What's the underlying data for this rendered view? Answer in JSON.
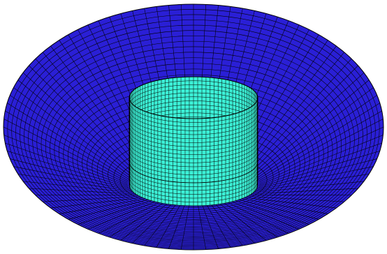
{
  "figure": {
    "kind": "meshed annular disc with central cylinder",
    "colors": {
      "background": "#ffffff",
      "disc_fill": "#2a1fd6",
      "cylinder_fill": "#3cf0d6",
      "inner_floor_fill": "#4ff5dc",
      "mesh_line": "#000000"
    },
    "mesh": {
      "radial_divisions": 96,
      "disc_rings": 26,
      "cylinder_wall_rows": 22,
      "cylinder_floor_rings": 12
    }
  }
}
